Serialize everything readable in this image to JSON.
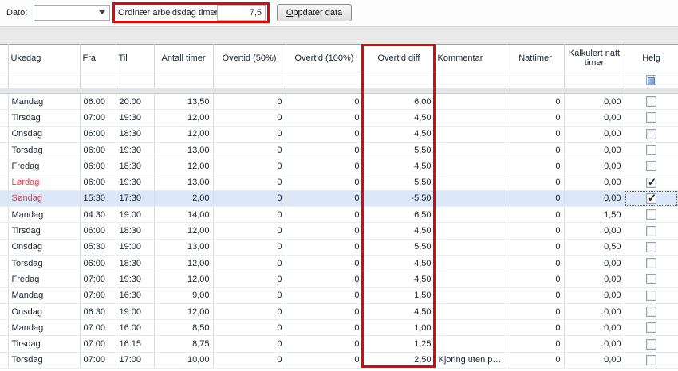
{
  "toolbar": {
    "dato_label": "Dato:",
    "dato_value": "",
    "ordinaer_label": "Ordinær arbeidsdag timer:",
    "ordinaer_value": "7,5",
    "oppdater_accel": "O",
    "oppdater_rest": "ppdater data"
  },
  "highlight_color": "#dc0808",
  "grid": {
    "columns": [
      "",
      "Ukedag",
      "Fra",
      "Til",
      "Antall timer",
      "Overtid (50%)",
      "Overtid (100%)",
      "Overtid diff",
      "Kommentar",
      "Nattimer",
      "Kalkulert natt timer",
      "Helg"
    ],
    "rows": [
      {
        "ukedag": "Mandag",
        "fra": "06:00",
        "til": "20:00",
        "antall": "13,50",
        "ot50": "0",
        "ot100": "0",
        "diff": "6,00",
        "kommentar": "",
        "nattimer": "0",
        "kalk": "0,00",
        "helg": false,
        "weekend": false,
        "selected": false,
        "focused": false
      },
      {
        "ukedag": "Tirsdag",
        "fra": "07:00",
        "til": "19:30",
        "antall": "12,00",
        "ot50": "0",
        "ot100": "0",
        "diff": "4,50",
        "kommentar": "",
        "nattimer": "0",
        "kalk": "0,00",
        "helg": false,
        "weekend": false,
        "selected": false,
        "focused": false
      },
      {
        "ukedag": "Onsdag",
        "fra": "06:00",
        "til": "18:30",
        "antall": "12,00",
        "ot50": "0",
        "ot100": "0",
        "diff": "4,50",
        "kommentar": "",
        "nattimer": "0",
        "kalk": "0,00",
        "helg": false,
        "weekend": false,
        "selected": false,
        "focused": false
      },
      {
        "ukedag": "Torsdag",
        "fra": "06:00",
        "til": "19:30",
        "antall": "13,00",
        "ot50": "0",
        "ot100": "0",
        "diff": "5,50",
        "kommentar": "",
        "nattimer": "0",
        "kalk": "0,00",
        "helg": false,
        "weekend": false,
        "selected": false,
        "focused": false
      },
      {
        "ukedag": "Fredag",
        "fra": "06:00",
        "til": "18:30",
        "antall": "12,00",
        "ot50": "0",
        "ot100": "0",
        "diff": "4,50",
        "kommentar": "",
        "nattimer": "0",
        "kalk": "0,00",
        "helg": false,
        "weekend": false,
        "selected": false,
        "focused": false
      },
      {
        "ukedag": "Lørdag",
        "fra": "06:00",
        "til": "19:30",
        "antall": "13,00",
        "ot50": "0",
        "ot100": "0",
        "diff": "5,50",
        "kommentar": "",
        "nattimer": "0",
        "kalk": "0,00",
        "helg": true,
        "weekend": true,
        "selected": false,
        "focused": false
      },
      {
        "ukedag": "Søndag",
        "fra": "15:30",
        "til": "17:30",
        "antall": "2,00",
        "ot50": "0",
        "ot100": "0",
        "diff": "-5,50",
        "kommentar": "",
        "nattimer": "0",
        "kalk": "0,00",
        "helg": true,
        "weekend": true,
        "selected": true,
        "focused": true
      },
      {
        "ukedag": "Mandag",
        "fra": "04:30",
        "til": "19:00",
        "antall": "14,00",
        "ot50": "0",
        "ot100": "0",
        "diff": "6,50",
        "kommentar": "",
        "nattimer": "0",
        "kalk": "1,50",
        "helg": false,
        "weekend": false,
        "selected": false,
        "focused": false
      },
      {
        "ukedag": "Tirsdag",
        "fra": "06:00",
        "til": "18:30",
        "antall": "12,00",
        "ot50": "0",
        "ot100": "0",
        "diff": "4,50",
        "kommentar": "",
        "nattimer": "0",
        "kalk": "0,00",
        "helg": false,
        "weekend": false,
        "selected": false,
        "focused": false
      },
      {
        "ukedag": "Onsdag",
        "fra": "05:30",
        "til": "19:00",
        "antall": "13,00",
        "ot50": "0",
        "ot100": "0",
        "diff": "5,50",
        "kommentar": "",
        "nattimer": "0",
        "kalk": "0,50",
        "helg": false,
        "weekend": false,
        "selected": false,
        "focused": false
      },
      {
        "ukedag": "Torsdag",
        "fra": "06:00",
        "til": "18:30",
        "antall": "12,00",
        "ot50": "0",
        "ot100": "0",
        "diff": "4,50",
        "kommentar": "",
        "nattimer": "0",
        "kalk": "0,00",
        "helg": false,
        "weekend": false,
        "selected": false,
        "focused": false
      },
      {
        "ukedag": "Fredag",
        "fra": "07:00",
        "til": "19:30",
        "antall": "12,00",
        "ot50": "0",
        "ot100": "0",
        "diff": "4,50",
        "kommentar": "",
        "nattimer": "0",
        "kalk": "0,00",
        "helg": false,
        "weekend": false,
        "selected": false,
        "focused": false
      },
      {
        "ukedag": "Mandag",
        "fra": "07:00",
        "til": "16:30",
        "antall": "9,00",
        "ot50": "0",
        "ot100": "0",
        "diff": "1,50",
        "kommentar": "",
        "nattimer": "0",
        "kalk": "0,00",
        "helg": false,
        "weekend": false,
        "selected": false,
        "focused": false
      },
      {
        "ukedag": "Onsdag",
        "fra": "06:30",
        "til": "19:00",
        "antall": "12,00",
        "ot50": "0",
        "ot100": "0",
        "diff": "4,50",
        "kommentar": "",
        "nattimer": "0",
        "kalk": "0,00",
        "helg": false,
        "weekend": false,
        "selected": false,
        "focused": false
      },
      {
        "ukedag": "Mandag",
        "fra": "07:00",
        "til": "16:00",
        "antall": "8,50",
        "ot50": "0",
        "ot100": "0",
        "diff": "1,00",
        "kommentar": "",
        "nattimer": "0",
        "kalk": "0,00",
        "helg": false,
        "weekend": false,
        "selected": false,
        "focused": false
      },
      {
        "ukedag": "Tirsdag",
        "fra": "07:00",
        "til": "16:15",
        "antall": "8,75",
        "ot50": "0",
        "ot100": "0",
        "diff": "1,25",
        "kommentar": "",
        "nattimer": "0",
        "kalk": "0,00",
        "helg": false,
        "weekend": false,
        "selected": false,
        "focused": false
      },
      {
        "ukedag": "Torsdag",
        "fra": "07:00",
        "til": "17:00",
        "antall": "10,00",
        "ot50": "0",
        "ot100": "0",
        "diff": "2,50",
        "kommentar": "Kjoring uten p…",
        "nattimer": "0",
        "kalk": "0,00",
        "helg": false,
        "weekend": false,
        "selected": false,
        "focused": false
      }
    ]
  }
}
